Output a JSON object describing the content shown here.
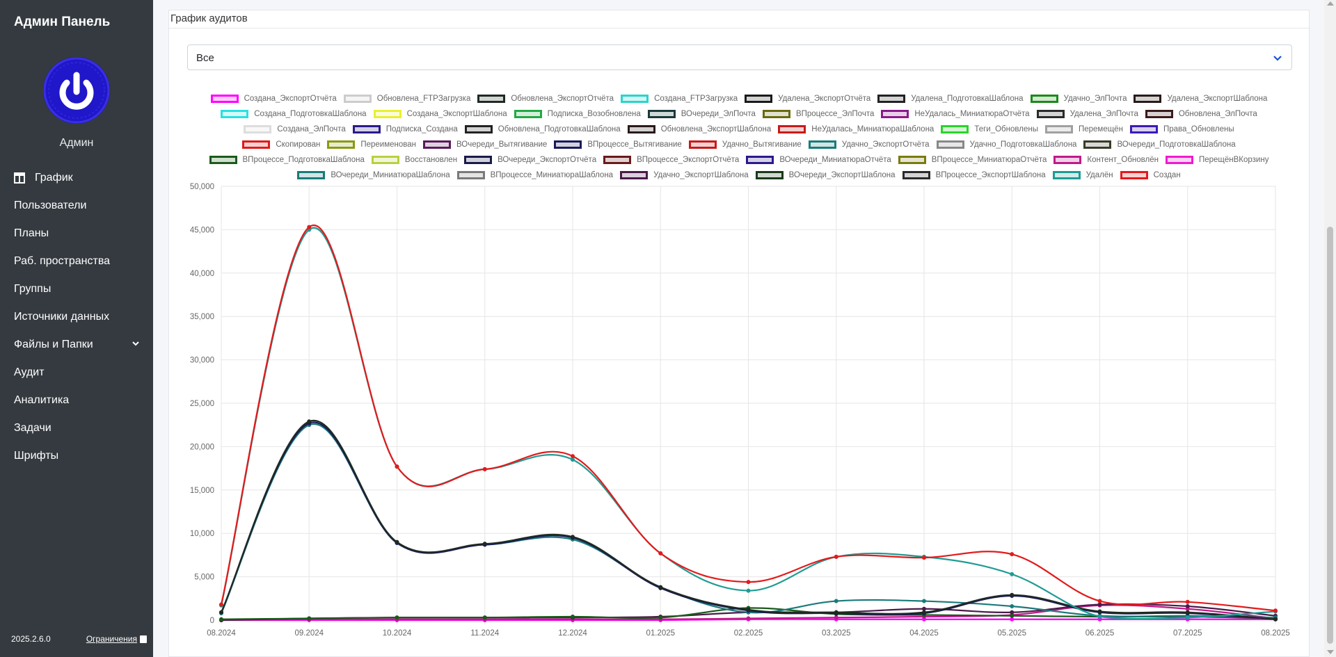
{
  "sidebar": {
    "brand": "Админ Панель",
    "user_name": "Админ",
    "avatar_color": "#1f17c9",
    "items": [
      {
        "label": "График",
        "icon": "chart-icon"
      },
      {
        "label": "Пользователи"
      },
      {
        "label": "Планы"
      },
      {
        "label": "Раб. пространства"
      },
      {
        "label": "Группы"
      },
      {
        "label": "Источники данных"
      },
      {
        "label": "Файлы и Папки",
        "icon": "chevron-down-icon"
      },
      {
        "label": "Аудит"
      },
      {
        "label": "Аналитика"
      },
      {
        "label": "Задачи"
      },
      {
        "label": "Шрифты"
      }
    ],
    "version": "2025.2.6.0",
    "limits_label": "Ограничения"
  },
  "card": {
    "title": "График аудитов",
    "filter_value": "Все"
  },
  "colors": {
    "sidebar_bg": "#343a40",
    "accent": "#1f17c9",
    "red": "#e31a1c",
    "teal": "#1e9c93"
  },
  "chart_data": {
    "type": "line",
    "categories": [
      "08.2024",
      "09.2024",
      "10.2024",
      "11.2024",
      "12.2024",
      "01.2025",
      "02.2025",
      "03.2025",
      "04.2025",
      "05.2025",
      "06.2025",
      "07.2025",
      "08.2025"
    ],
    "ylim": [
      0,
      50000
    ],
    "yticks": [
      "0",
      "5,000",
      "10,000",
      "15,000",
      "20,000",
      "25,000",
      "30,000",
      "35,000",
      "40,000",
      "45,000",
      "50,000"
    ],
    "grid": true,
    "legend_position": "top",
    "legend": [
      [
        {
          "name": "Создана_ЭкспортОтчёта",
          "color": "#ff00ff"
        },
        {
          "name": "Обновлена_FTPЗагрузка",
          "color": "#cccccc"
        },
        {
          "name": "Обновлена_ЭкспортОтчёта",
          "color": "#1f2a22"
        },
        {
          "name": "Создана_FTPЗагрузка",
          "color": "#2ad4cc"
        },
        {
          "name": "Удалена_ЭкспортОтчёта",
          "color": "#1a1a1a"
        },
        {
          "name": "Удалена_ПодготовкаШаблона",
          "color": "#222222"
        },
        {
          "name": "Удачно_ЭлПочта",
          "color": "#1a8a1a"
        },
        {
          "name": "Удалена_ЭкспортШаблона",
          "color": "#2a1a1a"
        }
      ],
      [
        {
          "name": "Создана_ПодготовкаШаблона",
          "color": "#2ae0e0"
        },
        {
          "name": "Создана_ЭкспортШаблона",
          "color": "#e8f030"
        },
        {
          "name": "Подписка_Возобновлена",
          "color": "#22aa44"
        },
        {
          "name": "ВОчереди_ЭлПочта",
          "color": "#1a3a3a"
        },
        {
          "name": "ВПроцессе_ЭлПочта",
          "color": "#6a6a10"
        },
        {
          "name": "НеУдалась_МиниатюраОтчёта",
          "color": "#8a1a8a"
        },
        {
          "name": "Удалена_ЭлПочта",
          "color": "#2a2a2a"
        },
        {
          "name": "Обновлена_ЭлПочта",
          "color": "#3a1a1a"
        }
      ],
      [
        {
          "name": "Создана_ЭлПочта",
          "color": "#dddddd"
        },
        {
          "name": "Подписка_Создана",
          "color": "#2a1a8a"
        },
        {
          "name": "Обновлена_ПодготовкаШаблона",
          "color": "#222222"
        },
        {
          "name": "Обновлена_ЭкспортШаблона",
          "color": "#2a1a1a"
        },
        {
          "name": "НеУдалась_МиниатюраШаблона",
          "color": "#c81a1a"
        },
        {
          "name": "Теги_Обновлены",
          "color": "#2ad42a"
        },
        {
          "name": "Перемещён",
          "color": "#a0a0a0"
        },
        {
          "name": "Права_Обновлены",
          "color": "#3a1ab8"
        }
      ],
      [
        {
          "name": "Скопирован",
          "color": "#e01a1a"
        },
        {
          "name": "Переименован",
          "color": "#8a9a10"
        },
        {
          "name": "ВОчереди_Вытягивание",
          "color": "#5a1a5a"
        },
        {
          "name": "ВПроцессе_Вытягивание",
          "color": "#1a1a5a"
        },
        {
          "name": "Удачно_Вытягивание",
          "color": "#c81a1a"
        },
        {
          "name": "Удачно_ЭкспортОтчёта",
          "color": "#1a7a7a"
        },
        {
          "name": "Удачно_ПодготовкаШаблона",
          "color": "#888888"
        },
        {
          "name": "ВОчереди_ПодготовкаШаблона",
          "color": "#3a3a2a"
        }
      ],
      [
        {
          "name": "ВПроцессе_ПодготовкаШаблона",
          "color": "#1a5a1a"
        },
        {
          "name": "Восстановлен",
          "color": "#b8d040"
        },
        {
          "name": "ВОчереди_ЭкспортОтчёта",
          "color": "#1a1a4a"
        },
        {
          "name": "ВПроцессе_ЭкспортОтчёта",
          "color": "#6a1a1a"
        },
        {
          "name": "ВОчереди_МиниатюраОтчёта",
          "color": "#2a1a8a"
        },
        {
          "name": "ВПроцессе_МиниатюраОтчёта",
          "color": "#7a7a10"
        },
        {
          "name": "Контент_Обновлён",
          "color": "#c01a8a"
        },
        {
          "name": "ПерещёнВКорзину",
          "color": "#f01ad0"
        }
      ],
      [
        {
          "name": "ВОчереди_МиниатюраШаблона",
          "color": "#1a7a7a"
        },
        {
          "name": "ВПроцессе_МиниатюраШаблона",
          "color": "#7a7a7a"
        },
        {
          "name": "Удачно_ЭкспортШаблона",
          "color": "#4a1a4a"
        },
        {
          "name": "ВОчереди_ЭкспортШаблона",
          "color": "#1a3a1a"
        },
        {
          "name": "ВПроцессе_ЭкспортШаблона",
          "color": "#2a2a2a"
        },
        {
          "name": "Удалён",
          "color": "#1e9c93"
        },
        {
          "name": "Создан",
          "color": "#e31a1c"
        }
      ]
    ],
    "series": [
      {
        "name": "Создан",
        "color": "#e31a1c",
        "values": [
          1800,
          45300,
          17700,
          17400,
          18900,
          7700,
          4400,
          7300,
          7200,
          7600,
          2200,
          2100,
          1100
        ]
      },
      {
        "name": "Удалён",
        "color": "#1e9c93",
        "values": [
          1700,
          45000,
          17700,
          17400,
          18500,
          7700,
          3400,
          7300,
          7300,
          5300,
          400,
          300,
          1000
        ]
      },
      {
        "name": "Обновлена_ЭкспортОтчёта",
        "color": "#1f2a22",
        "values": [
          900,
          22900,
          9000,
          8800,
          9600,
          3800,
          1200,
          900,
          900,
          2900,
          1000,
          900,
          100
        ]
      },
      {
        "name": "ВПроцессе_Вытягивание",
        "color": "#1a1a5a",
        "values": [
          900,
          22700,
          8900,
          8700,
          9500,
          3700,
          1100,
          800,
          800,
          2800,
          900,
          800,
          100
        ]
      },
      {
        "name": "Удачно_ЭкспортОтчёта",
        "color": "#1a7a7a",
        "values": [
          800,
          22500,
          8900,
          8700,
          9300,
          3800,
          900,
          2200,
          2200,
          1600,
          500,
          500,
          300
        ]
      },
      {
        "name": "ВПроцессе_ПодготовкаШаблона",
        "color": "#1a5a1a",
        "values": [
          100,
          200,
          300,
          300,
          400,
          300,
          1400,
          700,
          600,
          500,
          400,
          400,
          200
        ]
      },
      {
        "name": "Удачно_ЭкспортШаблона",
        "color": "#4a1a4a",
        "values": [
          0,
          200,
          300,
          300,
          300,
          400,
          900,
          900,
          1300,
          900,
          1800,
          1600,
          500
        ]
      },
      {
        "name": "Контент_Обновлён",
        "color": "#c01a8a",
        "values": [
          0,
          100,
          100,
          100,
          100,
          100,
          200,
          300,
          400,
          600,
          1700,
          1300,
          200
        ]
      },
      {
        "name": "Создана_ЭкспортОтчёта",
        "color": "#ff00ff",
        "values": [
          0,
          0,
          0,
          0,
          0,
          0,
          100,
          100,
          100,
          100,
          100,
          100,
          100
        ]
      }
    ]
  }
}
